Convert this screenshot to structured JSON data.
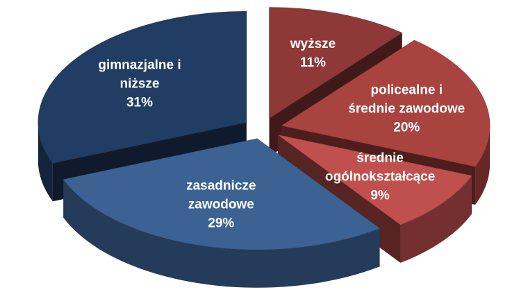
{
  "chart_data": {
    "type": "pie",
    "categories": [
      "wyższe",
      "policealne i średnie zawodowe",
      "średnie ogólnokształcące",
      "zasadnicze zawodowe",
      "gimnazjalne i niższe"
    ],
    "values": [
      11,
      20,
      9,
      29,
      31
    ],
    "value_labels": [
      "11%",
      "20%",
      "9%",
      "29%",
      "31%"
    ],
    "colors": [
      "#8e3937",
      "#a8433f",
      "#c0504d",
      "#3c6294",
      "#213d63"
    ]
  }
}
